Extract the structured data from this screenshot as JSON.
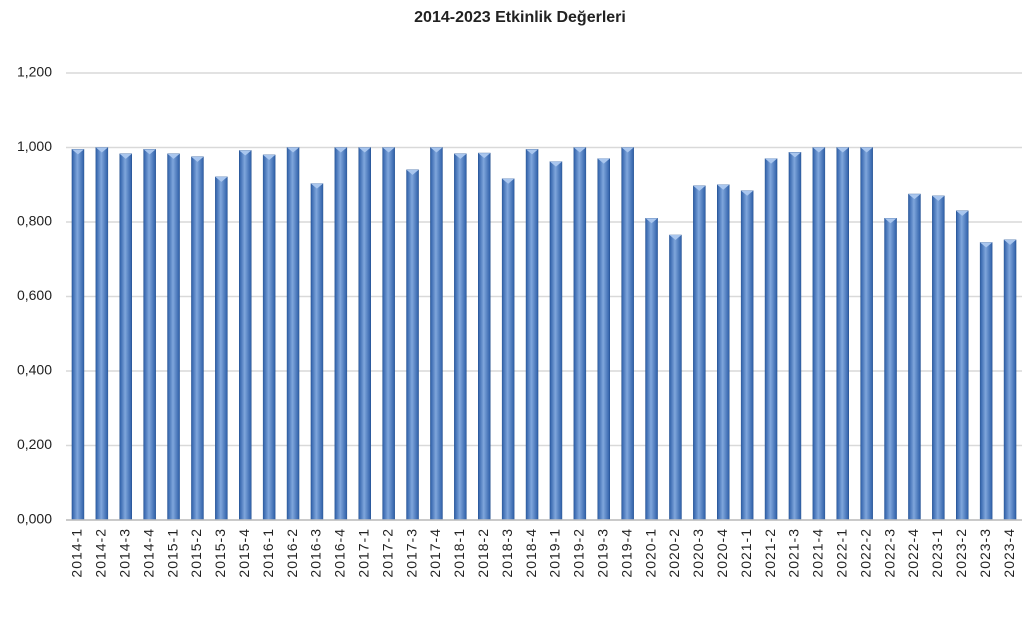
{
  "chart_data": {
    "type": "bar",
    "title": "2014-2023 Etkinlik Değerleri",
    "categories": [
      "2014-1",
      "2014-2",
      "2014-3",
      "2014-4",
      "2015-1",
      "2015-2",
      "2015-3",
      "2015-4",
      "2016-1",
      "2016-2",
      "2016-3",
      "2016-4",
      "2017-1",
      "2017-2",
      "2017-3",
      "2017-4",
      "2018-1",
      "2018-2",
      "2018-3",
      "2018-4",
      "2019-1",
      "2019-2",
      "2019-3",
      "2019-4",
      "2020-1",
      "2020-2",
      "2020-3",
      "2020-4",
      "2021-1",
      "2021-2",
      "2021-3",
      "2021-4",
      "2022-1",
      "2022-2",
      "2022-3",
      "2022-4",
      "2023-1",
      "2023-2",
      "2023-3",
      "2023-4"
    ],
    "values": [
      0.995,
      1.0,
      0.983,
      0.995,
      0.983,
      0.975,
      0.921,
      0.992,
      0.98,
      1.0,
      0.903,
      1.0,
      1.0,
      1.0,
      0.94,
      1.0,
      0.983,
      0.985,
      0.916,
      0.995,
      0.962,
      1.0,
      0.97,
      1.0,
      0.81,
      0.765,
      0.897,
      0.9,
      0.884,
      0.97,
      0.987,
      1.0,
      1.0,
      1.0,
      0.81,
      0.875,
      0.87,
      0.83,
      0.745,
      0.752
    ],
    "color": "#2e5fa8",
    "ylim": [
      0,
      1.2
    ],
    "yticks": [
      {
        "value": 0,
        "label": "0,000"
      },
      {
        "value": 0.2,
        "label": "0,200"
      },
      {
        "value": 0.4,
        "label": "0,400"
      },
      {
        "value": 0.6,
        "label": "0,600"
      },
      {
        "value": 0.8,
        "label": "0,800"
      },
      {
        "value": 1.0,
        "label": "1,000"
      },
      {
        "value": 1.2,
        "label": "1,200"
      }
    ],
    "grid": true
  }
}
